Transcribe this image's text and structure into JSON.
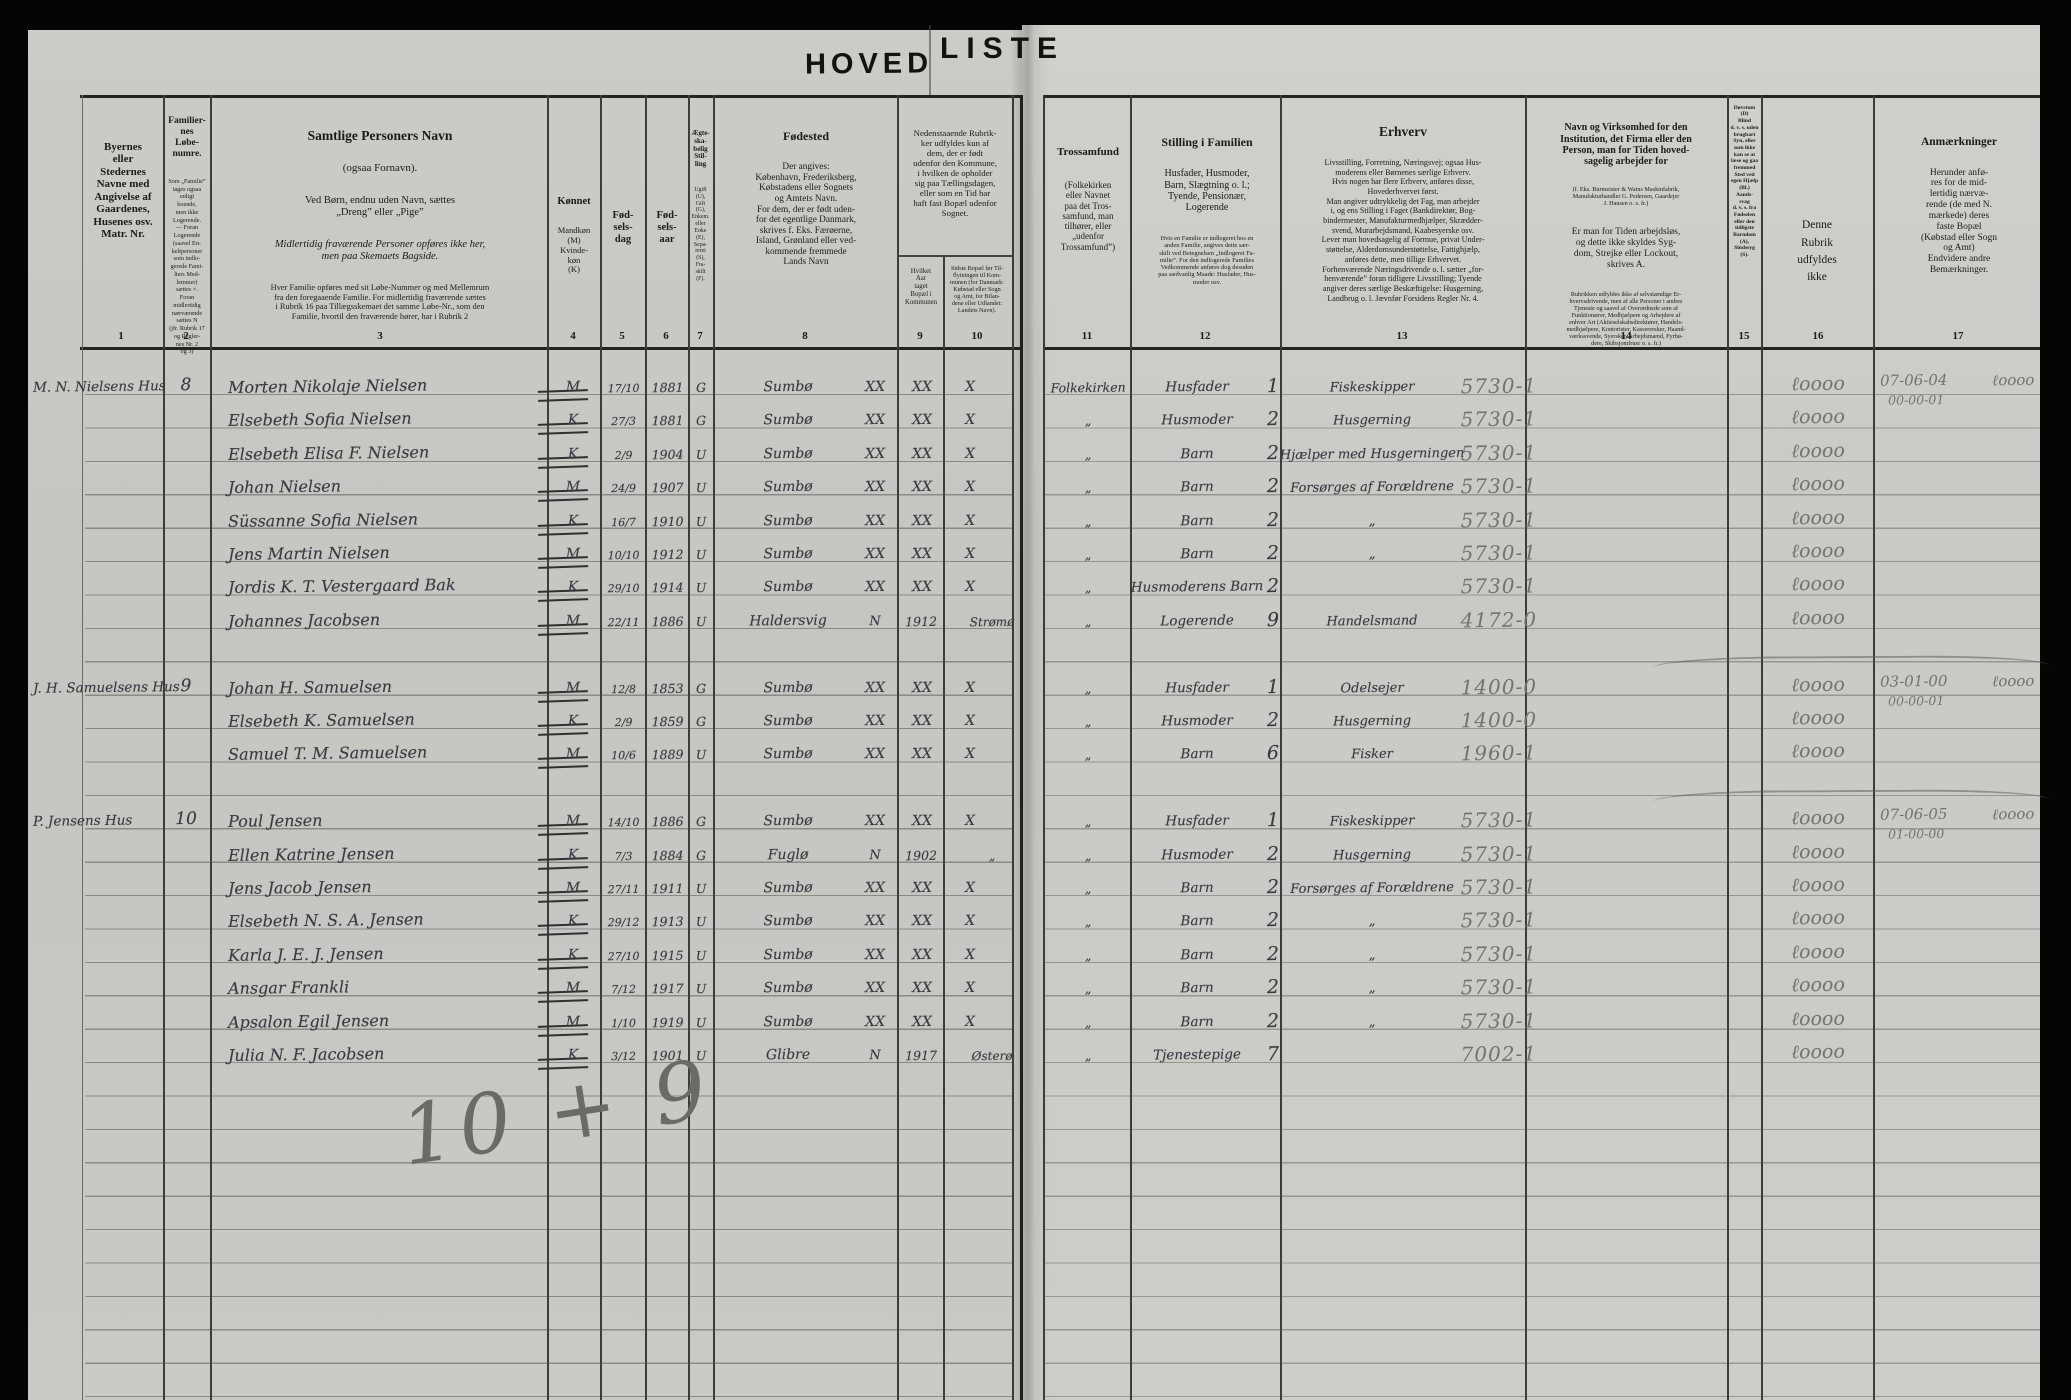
{
  "scan": {
    "title_left": "HOVED",
    "title_right": "LISTE"
  },
  "columns": {
    "nums": [
      "1",
      "2",
      "3",
      "4",
      "5",
      "6",
      "7",
      "8",
      "9",
      "10",
      "11",
      "12",
      "13",
      "14",
      "15",
      "16",
      "17"
    ],
    "c1": {
      "body": "Byernes\neller\nStedernes\nNavne med\nAngivelse af\nGaardenes,\nHusenes osv.\nMatr. Nr."
    },
    "c2": {
      "title": "Familier-\nnes\nLøbe-\nnumre.",
      "small": "Som „Familie”\ntages ogsaa\nenligt\nboende,\nmen ikke\nLogerende.\n— Foran\nLogerende\n(saavel En-\nkeltpersoner\nsom indlo-\ngerede Fami-\nliers Med-\nlemmer)\nsættes ×.\nForan\nmidlertidig\nnærværende\nsættes N\n(jfr. Rubrik 17\nog Regler-\nnes Nr. 2\nog 3)"
    },
    "c3": {
      "title": "Samtlige Personers Navn",
      "sub": "(ogsaa Fornavn).",
      "line1": "Ved Børn, endnu uden Navn, sættes\n„Dreng” eller „Pige”",
      "line2": "Midlertidig fraværende Personer opføres ikke her,\nmen paa Skemaets Bagside.",
      "small": "Hver Familie opføres med sit Løbe-Nummer og med Mellemrum\nfra den foregaaende Familie. For midlertidig fraværende sættes\ni Rubrik 16 paa Tillægsskemaet det samme Løbe-Nr., som den\nFamilie, hvortil den fraværende hører, har i Rubrik 2"
    },
    "c4": {
      "title": "Kønnet",
      "body": "Mandkøn\n(M)\nKvinde-\nkøn\n(K)"
    },
    "c5": {
      "title": "Fød-\nsels-\ndag"
    },
    "c6": {
      "title": "Fød-\nsels-\naar"
    },
    "c7": {
      "title": "Ægte-\nska-\nbelig\nStil-\nling",
      "small": "Ugift\n(U),\nGift\n(G),\nEnkem.\neller\nEnke\n(E),\nSepa-\nreret\n(S),\nFra-\nskilt\n(F)."
    },
    "c8": {
      "title": "Fødested",
      "body": "Der angives:\nKøbenhavn, Frederiksberg,\nKøbstadens eller Sognets\nog Amtets Navn.\nFor dem, der er født uden-\nfor det egentlige Danmark,\nskrives f. Eks. Færøerne,\nIsland, Grønland eller ved-\nkommende fremmede\nLands Navn"
    },
    "g910": {
      "body": "Nedenstaaende Rubrik-\nker udfyldes kun af\ndem, der er født\nudenfor den Kommune,\ni hvilken de opholder\nsig paa Tællingsdagen,\neller som en Tid har\nhaft fast Bopæl udenfor\nSognet."
    },
    "c9": {
      "body": "Hvilket\nAar\ntaget\nBopæl i\nKommunen"
    },
    "c10": {
      "body": "Sidste Bopæl før Til-\nflytningen til Kom-\nmunen (for Danmark:\nKøbstad eller Sogn\nog Amt, for Bilan-\ndene eller Udlandet:\nLandets Navn)."
    },
    "c11": {
      "title": "Trossamfund",
      "body": "(Folkekirken\neller Navnet\npaa det Tros-\nsamfund, man\ntilhører, eller\n„udenfor\nTrossamfund”)"
    },
    "c12": {
      "title": "Stilling i Familien",
      "body": "Husfader, Husmoder,\nBarn, Slægtning o. l.;\nTyende, Pensionær,\nLogerende",
      "small": "Hvis en Familie er indlogeret hos en\nanden Familie, angives dette sær-\nskilt ved Betegnelsen „Indlogeret Fa-\nmilie”. For den indlogerede Families\nVedkommende anføres dog desuden\npaa sædvanlig Maade: Husfader, Hus-\nmoder osv."
    },
    "c13": {
      "title": "Erhverv",
      "body": "Livsstilling, Forretning, Næringsvej; ogsaa Hus-\nmoderens eller Børnenes særlige Erhverv.\nHvis nogen har flere Erhverv, anføres disse,\nHovederhvervet først.\nMan angiver udtrykkelig det Fag, man arbejder\ni, og ens Stilling i Faget (Bankdirektør, Bog-\nbindermester, Manufakturmedhjælper, Skrædder-\nsvend, Murarbejdsmand, Kaabesyerske osv.\nLever man hovedsagelig af Formue, privat Under-\nstøttelse, Alderdomsunderstøttelse, Fattighjælp,\nanføres dette, men tillige Erhvervet.\nForhenværende Næringsdrivende o. l. sætter „for-\nhenværende” foran tidligere Livsstilling; Tyende\nangiver deres særlige Beskæftigelse: Husgerning,\nLandbrug o. l. Jævnfør Forsidens Regler Nr. 4."
    },
    "c14": {
      "title": "Navn og Virksomhed for den\nInstitution, det Firma eller den\nPerson, man for Tiden hoved-\nsagelig arbejder for",
      "small1": "(f. Eks. Burmeister & Wains Maskinfabrik,\nManufakturhandler G. Pedersen, Gaardejer\nJ. Hansen o. s. fr.)",
      "body": "Er man for Tiden arbejdsløs,\nog dette ikke skyldes Syg-\ndom, Strejke eller Lockout,\nskrives A.",
      "small2": "Rubrikken udfyldes ikke af selvstændige Er-\nhvervsdrivende, men af alle Personer i andres\nTjeneste og saavel af Overordnede som af\nFunktionærer, Medhjælpere og Arbejdere af\nenhver Art (Aktieselskabsdirektører, Handels-\nmedhjælpere, Kontorister, Kasserersker, Haand-\nværkssvende, Syersker, Arbejdsmænd, Fyrbø-\ndere, Skibsjomfruer o. s. fr.)"
    },
    "c15": {
      "small": "Døvstum\n(D)\nBlind\nd. v. s. uden\nbrugbart\nSyn, eller\nsom ikke\nkan se at\nlæse og gaa\nfremmed\nSted ved\negen Hjælp\n(Bl.)\nAands-\nsvag\nd. v. s. fra\nFødselen\neller den\ntidligste\nBarndom\n(A),\nSindssyg\n(S)."
    },
    "c16": {
      "body": "Denne\nRubrik\nudfyldes\nikke"
    },
    "c17": {
      "title": "Anmærkninger",
      "body": "Herunder anfø-\nres for de mid-\nlertidig nærvæ-\nrende (de med N.\nmærkede) deres\nfaste Bopæl\n(Købstad eller Sogn\nog Amt)\nEndvidere andre\nBemærkninger."
    }
  },
  "marks": {
    "loop": "ℓoooo",
    "local_cross": [
      "XX",
      "XX",
      "X"
    ],
    "moved_mark": "N"
  },
  "summary_note": "10 + 9",
  "families": [
    {
      "place": "M. N. Nielsens Hus",
      "no": "8",
      "tally": [
        "07-06-04",
        "00-00-01"
      ],
      "members": [
        {
          "name": "Morten Nikolaje Nielsen",
          "sex": "M",
          "day": "17/10",
          "year": "1881",
          "ms": "G",
          "bp": "Sumbø",
          "tros": "Folkekirken",
          "pos": "Husfader",
          "pn": "1",
          "occ": "Fiskeskipper",
          "code": "5730-1"
        },
        {
          "name": "Elsebeth Sofia Nielsen",
          "sex": "K",
          "day": "27/3",
          "year": "1881",
          "ms": "G",
          "bp": "Sumbø",
          "tros": "„",
          "pos": "Husmoder",
          "pn": "2",
          "occ": "Husgerning",
          "code": "5730-1"
        },
        {
          "name": "Elsebeth Elisa F. Nielsen",
          "sex": "K",
          "day": "2/9",
          "year": "1904",
          "ms": "U",
          "bp": "Sumbø",
          "tros": "„",
          "pos": "Barn",
          "pn": "2",
          "occ": "Hjælper med Husgerningen",
          "code": "5730-1"
        },
        {
          "name": "Johan Nielsen",
          "sex": "M",
          "day": "24/9",
          "year": "1907",
          "ms": "U",
          "bp": "Sumbø",
          "tros": "„",
          "pos": "Barn",
          "pn": "2",
          "occ": "Forsørges af Forældrene",
          "code": "5730-1"
        },
        {
          "name": "Süssanne Sofia Nielsen",
          "sex": "K",
          "day": "16/7",
          "year": "1910",
          "ms": "U",
          "bp": "Sumbø",
          "tros": "„",
          "pos": "Barn",
          "pn": "2",
          "occ": "„",
          "code": "5730-1"
        },
        {
          "name": "Jens Martin Nielsen",
          "sex": "M",
          "day": "10/10",
          "year": "1912",
          "ms": "U",
          "bp": "Sumbø",
          "tros": "„",
          "pos": "Barn",
          "pn": "2",
          "occ": "„",
          "code": "5730-1"
        },
        {
          "name": "Jordis K. T. Vestergaard Bak",
          "sex": "K",
          "day": "29/10",
          "year": "1914",
          "ms": "U",
          "bp": "Sumbø",
          "tros": "„",
          "pos": "Husmoderens Barn",
          "pn": "2",
          "occ": "",
          "code": "5730-1"
        },
        {
          "name": "Johannes Jacobsen",
          "sex": "M",
          "day": "22/11",
          "year": "1886",
          "ms": "U",
          "bp": "Haldersvig",
          "moved": {
            "year": "1912",
            "from": "Strømø"
          },
          "tros": "„",
          "pos": "Logerende",
          "pn": "9",
          "occ": "Handelsmand",
          "code": "4172-0"
        }
      ]
    },
    {
      "place": "J. H. Samuelsens Hus",
      "no": "9",
      "tally": [
        "03-01-00",
        "00-00-01"
      ],
      "members": [
        {
          "name": "Johan H. Samuelsen",
          "sex": "M",
          "day": "12/8",
          "year": "1853",
          "ms": "G",
          "bp": "Sumbø",
          "tros": "„",
          "pos": "Husfader",
          "pn": "1",
          "occ": "Odelsejer",
          "code": "1400-0"
        },
        {
          "name": "Elsebeth K. Samuelsen",
          "sex": "K",
          "day": "2/9",
          "year": "1859",
          "ms": "G",
          "bp": "Sumbø",
          "tros": "„",
          "pos": "Husmoder",
          "pn": "2",
          "occ": "Husgerning",
          "code": "1400-0"
        },
        {
          "name": "Samuel T. M. Samuelsen",
          "sex": "M",
          "day": "10/6",
          "year": "1889",
          "ms": "U",
          "bp": "Sumbø",
          "tros": "„",
          "pos": "Barn",
          "pn": "6",
          "occ": "Fisker",
          "code": "1960-1"
        }
      ]
    },
    {
      "place": "P. Jensens Hus",
      "no": "10",
      "tally": [
        "07-06-05",
        "01-00-00"
      ],
      "members": [
        {
          "name": "Poul Jensen",
          "sex": "M",
          "day": "14/10",
          "year": "1886",
          "ms": "G",
          "bp": "Sumbø",
          "tros": "„",
          "pos": "Husfader",
          "pn": "1",
          "occ": "Fiskeskipper",
          "code": "5730-1"
        },
        {
          "name": "Ellen Katrine Jensen",
          "sex": "K",
          "day": "7/3",
          "year": "1884",
          "ms": "G",
          "bp": "Fuglø",
          "moved": {
            "year": "1902",
            "from": "„"
          },
          "tros": "„",
          "pos": "Husmoder",
          "pn": "2",
          "occ": "Husgerning",
          "code": "5730-1"
        },
        {
          "name": "Jens Jacob Jensen",
          "sex": "M",
          "day": "27/11",
          "year": "1911",
          "ms": "U",
          "bp": "Sumbø",
          "tros": "„",
          "pos": "Barn",
          "pn": "2",
          "occ": "Forsørges af Forældrene",
          "code": "5730-1"
        },
        {
          "name": "Elsebeth N. S. A. Jensen",
          "sex": "K",
          "day": "29/12",
          "year": "1913",
          "ms": "U",
          "bp": "Sumbø",
          "tros": "„",
          "pos": "Barn",
          "pn": "2",
          "occ": "„",
          "code": "5730-1"
        },
        {
          "name": "Karla J. E. J. Jensen",
          "sex": "K",
          "day": "27/10",
          "year": "1915",
          "ms": "U",
          "bp": "Sumbø",
          "tros": "„",
          "pos": "Barn",
          "pn": "2",
          "occ": "„",
          "code": "5730-1"
        },
        {
          "name": "Ansgar Frankli",
          "sex": "M",
          "day": "7/12",
          "year": "1917",
          "ms": "U",
          "bp": "Sumbø",
          "tros": "„",
          "pos": "Barn",
          "pn": "2",
          "occ": "„",
          "code": "5730-1"
        },
        {
          "name": "Apsalon Egil Jensen",
          "sex": "M",
          "day": "1/10",
          "year": "1919",
          "ms": "U",
          "bp": "Sumbø",
          "tros": "„",
          "pos": "Barn",
          "pn": "2",
          "occ": "„",
          "code": "5730-1"
        },
        {
          "name": "Julia N. F. Jacobsen",
          "sex": "K",
          "day": "3/12",
          "year": "1901",
          "ms": "U",
          "bp": "Glibre",
          "moved": {
            "year": "1917",
            "from": "Østerø"
          },
          "tros": "„",
          "pos": "Tjenestepige",
          "pn": "7",
          "occ": "",
          "code": "7002-1"
        }
      ]
    }
  ]
}
